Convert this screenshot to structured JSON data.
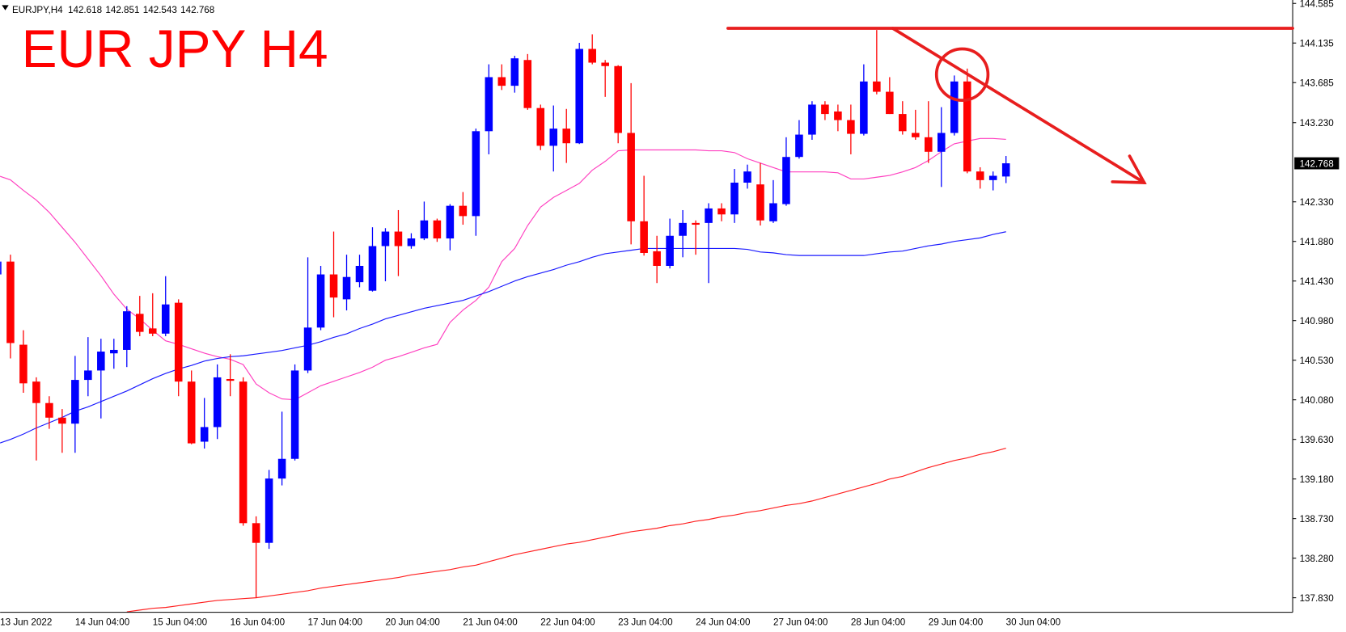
{
  "chart_data": {
    "type": "candlestick",
    "symbol": "EURJPY,H4",
    "title": "EUR JPY H4",
    "up_color": "#0000ff",
    "down_color": "#ff0000",
    "categories": [
      "13 Jun 2022",
      null,
      null,
      null,
      null,
      null,
      "14 Jun 04:00",
      null,
      null,
      null,
      null,
      null,
      "15 Jun 04:00",
      null,
      null,
      null,
      null,
      null,
      "16 Jun 04:00",
      null,
      null,
      null,
      null,
      null,
      "17 Jun 04:00",
      null,
      null,
      null,
      null,
      null,
      "20 Jun 04:00",
      null,
      null,
      null,
      null,
      null,
      "21 Jun 04:00",
      null,
      null,
      null,
      null,
      null,
      "22 Jun 04:00",
      null,
      null,
      null,
      null,
      null,
      "23 Jun 04:00",
      null,
      null,
      null,
      null,
      null,
      "24 Jun 04:00",
      null,
      null,
      null,
      null,
      null,
      "27 Jun 04:00",
      null,
      null,
      null,
      null,
      null,
      "28 Jun 04:00",
      null,
      null,
      null,
      null,
      null,
      "29 Jun 04:00",
      null,
      null,
      null,
      null,
      null,
      "30 Jun 04:00"
    ],
    "open": [
      141.505,
      141.651,
      140.706,
      140.287,
      140.043,
      139.877,
      139.809,
      140.306,
      140.413,
      140.608,
      140.647,
      141.057,
      140.891,
      140.832,
      141.183,
      140.287,
      139.604,
      139.77,
      140.316,
      140.287,
      138.678,
      138.454,
      139.185,
      139.409,
      140.413,
      140.901,
      141.505,
      141.222,
      141.417,
      141.32,
      141.827,
      141.992,
      141.827,
      141.914,
      142.119,
      141.914,
      142.285,
      142.168,
      143.133,
      143.747,
      143.649,
      143.942,
      143.396,
      142.967,
      143.162,
      142.996,
      144.068,
      143.912,
      143.873,
      143.113,
      142.109,
      141.768,
      141.602,
      141.944,
      142.09,
      142.09,
      142.255,
      142.187,
      142.548,
      142.528,
      142.109,
      142.304,
      142.84,
      143.094,
      143.435,
      143.357,
      143.259,
      143.103,
      143.698,
      143.581,
      143.328,
      143.113,
      143.064,
      142.899,
      143.113,
      143.698,
      142.675,
      142.577,
      142.618
    ],
    "high": [
      141.7,
      141.729,
      140.871,
      140.335,
      140.121,
      139.975,
      140.579,
      140.793,
      140.774,
      140.774,
      141.144,
      141.261,
      141.291,
      141.485,
      141.222,
      140.413,
      140.101,
      140.482,
      140.598,
      140.335,
      138.756,
      139.283,
      139.945,
      140.482,
      141.7,
      141.602,
      141.992,
      141.729,
      141.729,
      142.041,
      142.031,
      142.236,
      141.973,
      142.333,
      142.139,
      142.304,
      142.441,
      143.162,
      143.893,
      143.893,
      143.99,
      144.01,
      143.435,
      143.425,
      143.386,
      144.137,
      144.234,
      143.942,
      143.883,
      143.679,
      142.626,
      141.944,
      142.139,
      142.236,
      142.119,
      142.314,
      142.314,
      142.704,
      142.753,
      142.772,
      142.577,
      143.064,
      143.259,
      143.474,
      143.474,
      143.435,
      143.435,
      143.893,
      144.283,
      143.747,
      143.474,
      143.376,
      143.474,
      143.406,
      143.766,
      143.844,
      142.723,
      142.675,
      142.851
    ],
    "low": [
      141.456,
      140.55,
      140.16,
      139.39,
      139.75,
      139.478,
      139.478,
      140.121,
      139.868,
      140.433,
      140.452,
      140.803,
      140.803,
      140.803,
      140.121,
      139.575,
      139.526,
      139.634,
      140.121,
      138.649,
      137.83,
      138.386,
      139.107,
      139.39,
      140.384,
      140.871,
      141.018,
      141.096,
      141.359,
      141.31,
      141.427,
      141.486,
      141.797,
      141.895,
      141.875,
      141.778,
      142.07,
      141.944,
      142.87,
      143.601,
      143.571,
      143.376,
      142.918,
      142.675,
      142.772,
      142.987,
      143.893,
      143.523,
      142.996,
      141.846,
      141.719,
      141.407,
      141.573,
      141.7,
      141.729,
      141.407,
      142.109,
      142.09,
      142.48,
      142.061,
      142.09,
      142.285,
      142.821,
      143.035,
      143.259,
      143.133,
      142.87,
      143.084,
      143.552,
      143.328,
      143.094,
      143.035,
      142.772,
      142.499,
      143.084,
      142.655,
      142.48,
      142.46,
      142.543
    ],
    "close": [
      141.651,
      140.725,
      140.267,
      140.043,
      139.877,
      139.809,
      140.306,
      140.413,
      140.628,
      140.647,
      141.086,
      140.852,
      140.832,
      141.164,
      140.287,
      139.585,
      139.77,
      140.335,
      140.296,
      138.678,
      138.454,
      139.185,
      139.409,
      140.413,
      140.901,
      141.505,
      141.242,
      141.476,
      141.602,
      141.827,
      141.992,
      141.827,
      141.914,
      142.119,
      141.914,
      142.285,
      142.168,
      143.133,
      143.747,
      143.649,
      143.961,
      143.396,
      142.967,
      143.162,
      142.996,
      144.068,
      143.912,
      143.873,
      143.113,
      142.109,
      141.749,
      141.602,
      141.944,
      142.09,
      142.07,
      142.255,
      142.187,
      142.548,
      142.675,
      142.119,
      142.314,
      142.84,
      143.094,
      143.435,
      143.328,
      143.259,
      143.103,
      143.698,
      143.581,
      143.328,
      143.133,
      143.064,
      142.899,
      143.113,
      143.698,
      142.675,
      142.577,
      142.626,
      142.768
    ],
    "overlays": [
      {
        "color": "#ff40c0",
        "values": [
          142.63,
          142.58,
          142.46,
          142.35,
          142.21,
          142.04,
          141.87,
          141.68,
          141.49,
          141.28,
          141.11,
          141.0,
          140.87,
          140.75,
          140.71,
          140.66,
          140.61,
          140.57,
          140.54,
          140.48,
          140.26,
          140.16,
          140.09,
          140.08,
          140.16,
          140.24,
          140.29,
          140.34,
          140.39,
          140.45,
          140.53,
          140.57,
          140.62,
          140.67,
          140.71,
          140.96,
          141.1,
          141.21,
          141.36,
          141.65,
          141.8,
          142.06,
          142.27,
          142.38,
          142.46,
          142.54,
          142.69,
          142.79,
          142.91,
          142.92,
          142.92,
          142.92,
          142.92,
          142.92,
          142.92,
          142.91,
          142.91,
          142.89,
          142.82,
          142.77,
          142.72,
          142.67,
          142.67,
          142.67,
          142.67,
          142.66,
          142.59,
          142.59,
          142.61,
          142.63,
          142.67,
          142.72,
          142.8,
          142.9,
          142.99,
          143.02,
          143.05,
          143.05,
          143.04
        ]
      },
      {
        "color": "#1a1aff",
        "values": [
          139.58,
          139.63,
          139.69,
          139.76,
          139.82,
          139.88,
          139.95,
          140.0,
          140.06,
          140.12,
          140.18,
          140.25,
          140.32,
          140.38,
          140.43,
          140.47,
          140.52,
          140.55,
          140.57,
          140.58,
          140.6,
          140.62,
          140.64,
          140.67,
          140.7,
          140.74,
          140.79,
          140.83,
          140.89,
          140.94,
          141.0,
          141.04,
          141.08,
          141.12,
          141.15,
          141.18,
          141.21,
          141.26,
          141.31,
          141.37,
          141.43,
          141.48,
          141.52,
          141.56,
          141.61,
          141.65,
          141.7,
          141.74,
          141.76,
          141.78,
          141.8,
          141.8,
          141.8,
          141.8,
          141.8,
          141.8,
          141.8,
          141.8,
          141.79,
          141.76,
          141.75,
          141.73,
          141.72,
          141.72,
          141.72,
          141.72,
          141.72,
          141.72,
          141.74,
          141.76,
          141.77,
          141.8,
          141.83,
          141.85,
          141.88,
          141.9,
          141.92,
          141.96,
          141.99
        ]
      },
      {
        "color": "#ff2020",
        "values": [
          null,
          null,
          null,
          null,
          null,
          null,
          null,
          null,
          null,
          null,
          137.67,
          137.69,
          137.71,
          137.72,
          137.74,
          137.76,
          137.78,
          137.8,
          137.81,
          137.82,
          137.83,
          137.85,
          137.87,
          137.89,
          137.91,
          137.94,
          137.96,
          137.98,
          138.0,
          138.02,
          138.04,
          138.06,
          138.09,
          138.11,
          138.13,
          138.15,
          138.18,
          138.2,
          138.24,
          138.28,
          138.32,
          138.35,
          138.38,
          138.41,
          138.44,
          138.46,
          138.49,
          138.52,
          138.55,
          138.58,
          138.6,
          138.62,
          138.65,
          138.67,
          138.7,
          138.72,
          138.75,
          138.77,
          138.8,
          138.82,
          138.85,
          138.88,
          138.9,
          138.93,
          138.97,
          139.01,
          139.05,
          139.09,
          139.13,
          139.18,
          139.21,
          139.26,
          139.31,
          139.35,
          139.39,
          139.42,
          139.46,
          139.49,
          139.53
        ]
      }
    ],
    "ylim": [
      137.665,
      144.624
    ],
    "yticks": [
      144.585,
      144.135,
      143.685,
      {
        "value": 143.23,
        "label": "143.230"
      },
      {
        "value": 142.33,
        "label": "142.330"
      },
      {
        "value": 141.88,
        "label": "141.880"
      },
      {
        "value": 141.43,
        "label": "141.430"
      },
      {
        "value": 140.98,
        "label": "140.980"
      },
      {
        "value": 140.53,
        "label": "140.530"
      },
      {
        "value": 140.08,
        "label": "140.080"
      },
      {
        "value": 139.63,
        "label": "139.630"
      },
      {
        "value": 139.18,
        "label": "139.180"
      },
      {
        "value": 138.73,
        "label": "138.730"
      },
      {
        "value": 138.28,
        "label": "138.280"
      },
      {
        "value": 137.83,
        "label": "137.830"
      }
    ],
    "grid": false
  }
}
